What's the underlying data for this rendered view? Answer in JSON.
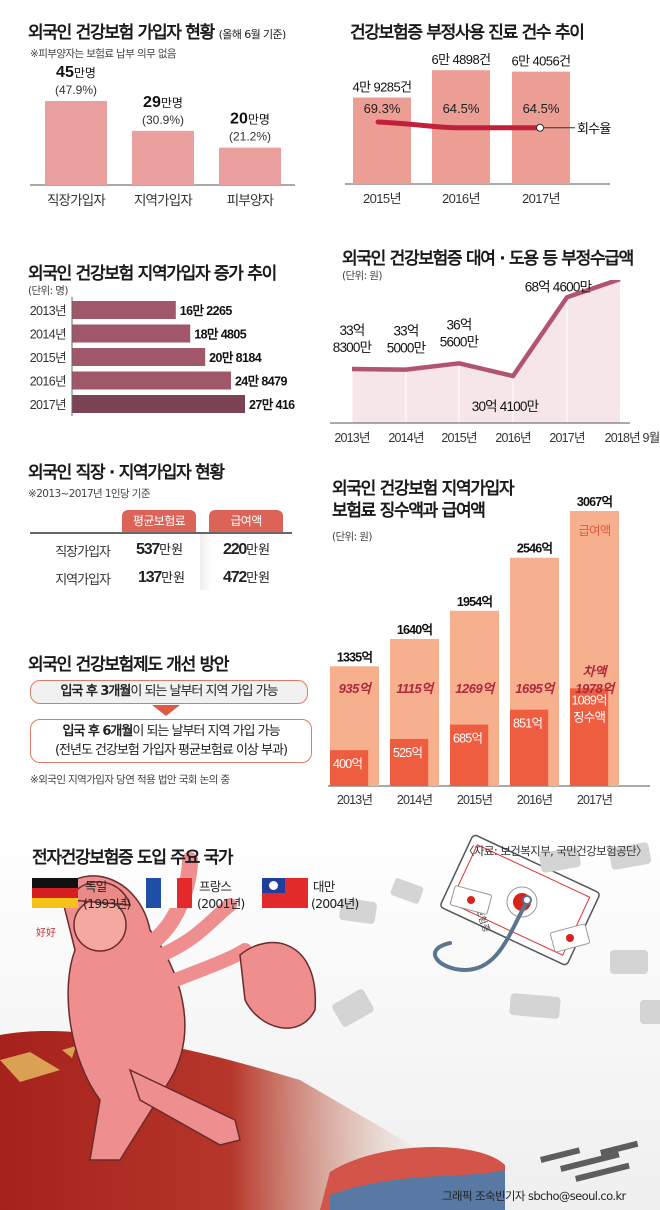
{
  "chart_data": [
    {
      "type": "bar",
      "title": "외국인 건강보험 가입자 현황",
      "subtitle": "(올해 6월 기준)",
      "note": "※피부양자는 보험료 납부 의무 없음",
      "categories": [
        "직장가입자",
        "지역가입자",
        "피부양자"
      ],
      "values": [
        45,
        29,
        20
      ],
      "value_unit": "만명",
      "value_labels": [
        "45",
        "29",
        "20"
      ],
      "percent_labels": [
        "(47.9%)",
        "(30.9%)",
        "(21.2%)"
      ],
      "color": "#eba0a0"
    },
    {
      "type": "bar",
      "title": "건강보험증 부정사용 진료 건수 추이",
      "categories": [
        "2015년",
        "2016년",
        "2017년"
      ],
      "values": [
        49285,
        64898,
        64056
      ],
      "value_labels": [
        "4만 9285건",
        "6만 4898건",
        "6만 4056건"
      ],
      "line_series": {
        "name": "회수율",
        "values": [
          69.3,
          64.5,
          64.5
        ],
        "labels": [
          "69.3%",
          "64.5%",
          "64.5%"
        ],
        "color": "#c21f3a"
      },
      "color": "#ec9e94"
    },
    {
      "type": "bar",
      "orientation": "horizontal",
      "title": "외국인 건강보험 지역가입자 증가 추이",
      "unit": "(단위: 명)",
      "categories": [
        "2013년",
        "2014년",
        "2015년",
        "2016년",
        "2017년"
      ],
      "values": [
        162265,
        184805,
        208184,
        248479,
        270416
      ],
      "value_labels": [
        "16만 2265",
        "18만 4805",
        "20만 8184",
        "24만 8479",
        "27만 416"
      ],
      "colors": [
        "#a0576a",
        "#a0576a",
        "#a0576a",
        "#a0576a",
        "#7e4255"
      ]
    },
    {
      "type": "line",
      "title": "외국인 건강보험증 대여 · 도용 등 부정수급액",
      "unit": "(단위: 원)",
      "categories": [
        "2013년",
        "2014년",
        "2015년",
        "2016년",
        "2017년",
        "2018년 9월"
      ],
      "values": [
        3383000000,
        3350000000,
        3656000000,
        3041000000,
        6846000000,
        7724000000
      ],
      "value_labels": [
        [
          "33억",
          "8300만"
        ],
        [
          "33억",
          "5000만"
        ],
        [
          "36억",
          "5600만"
        ],
        [
          "30억 4100만"
        ],
        [
          "68억 4600만"
        ],
        [
          "77억 2400만"
        ]
      ],
      "line_color": "#b05470",
      "fill_color": "#f6e6e9"
    },
    {
      "type": "table",
      "title": "외국인 직장 · 지역가입자 현황",
      "note": "※2013~2017년 1인당 기준",
      "columns": [
        "평균보험료",
        "급여액"
      ],
      "rows": [
        {
          "label": "직장가입자",
          "cells": [
            {
              "num": "537",
              "unit": "만원"
            },
            {
              "num": "220",
              "unit": "만원"
            }
          ]
        },
        {
          "label": "지역가입자",
          "cells": [
            {
              "num": "137",
              "unit": "만원"
            },
            {
              "num": "472",
              "unit": "만원"
            }
          ]
        }
      ]
    },
    {
      "type": "bar",
      "title_lines": [
        "외국인 건강보험 지역가입자",
        "보험료 징수액과 급여액"
      ],
      "unit": "(단위: 원)",
      "categories": [
        "2013년",
        "2014년",
        "2015년",
        "2016년",
        "2017년"
      ],
      "series": [
        {
          "name": "급여액",
          "values": [
            1335,
            1640,
            1954,
            2546,
            3067
          ],
          "labels": [
            "1335억",
            "1640억",
            "1954억",
            "2546억",
            "3067억"
          ],
          "color": "#f6b08e"
        },
        {
          "name": "징수액",
          "values": [
            400,
            525,
            685,
            851,
            1089
          ],
          "labels": [
            "400억",
            "525억",
            "685억",
            "851억",
            "1089억"
          ],
          "color": "#ee5d40"
        }
      ],
      "difference": {
        "name": "차액",
        "values": [
          935,
          1115,
          1269,
          1695,
          1978
        ],
        "labels": [
          "935억",
          "1115억",
          "1269억",
          "1695억",
          "1978억"
        ],
        "color": "#b0283a"
      }
    }
  ],
  "improvement": {
    "title": "외국인 건강보험제도 개선 방안",
    "before_bold": "입국 후 3개월",
    "before_rest": "이 되는 날부터 지역 가입 가능",
    "after_bold": "입국 후 6개월",
    "after_rest": "이 되는 날부터 지역 가입 가능",
    "after_line2": "(전년도 건강보험 가입자 평균보험료 이상 부과)",
    "note": "※외국인 지역가입자 당연 적용 법안 국회 논의 중"
  },
  "countries": {
    "title": "전자건강보험증 도입 주요 국가",
    "items": [
      {
        "name": "독일",
        "year": "(1993년)",
        "flag": "germany-flag"
      },
      {
        "name": "프랑스",
        "year": "(2001년)",
        "flag": "france-flag"
      },
      {
        "name": "대만",
        "year": "(2004년)",
        "flag": "taiwan-flag"
      }
    ]
  },
  "source": "〈자료: 보건복지부, 국민건강보험공단〉",
  "credit": "그래픽 조숙빈기자 sbcho@seoul.co.kr",
  "illustration": {
    "card_text": "건강보험증",
    "card_text2": "보험공단",
    "figure_text": "好好"
  }
}
